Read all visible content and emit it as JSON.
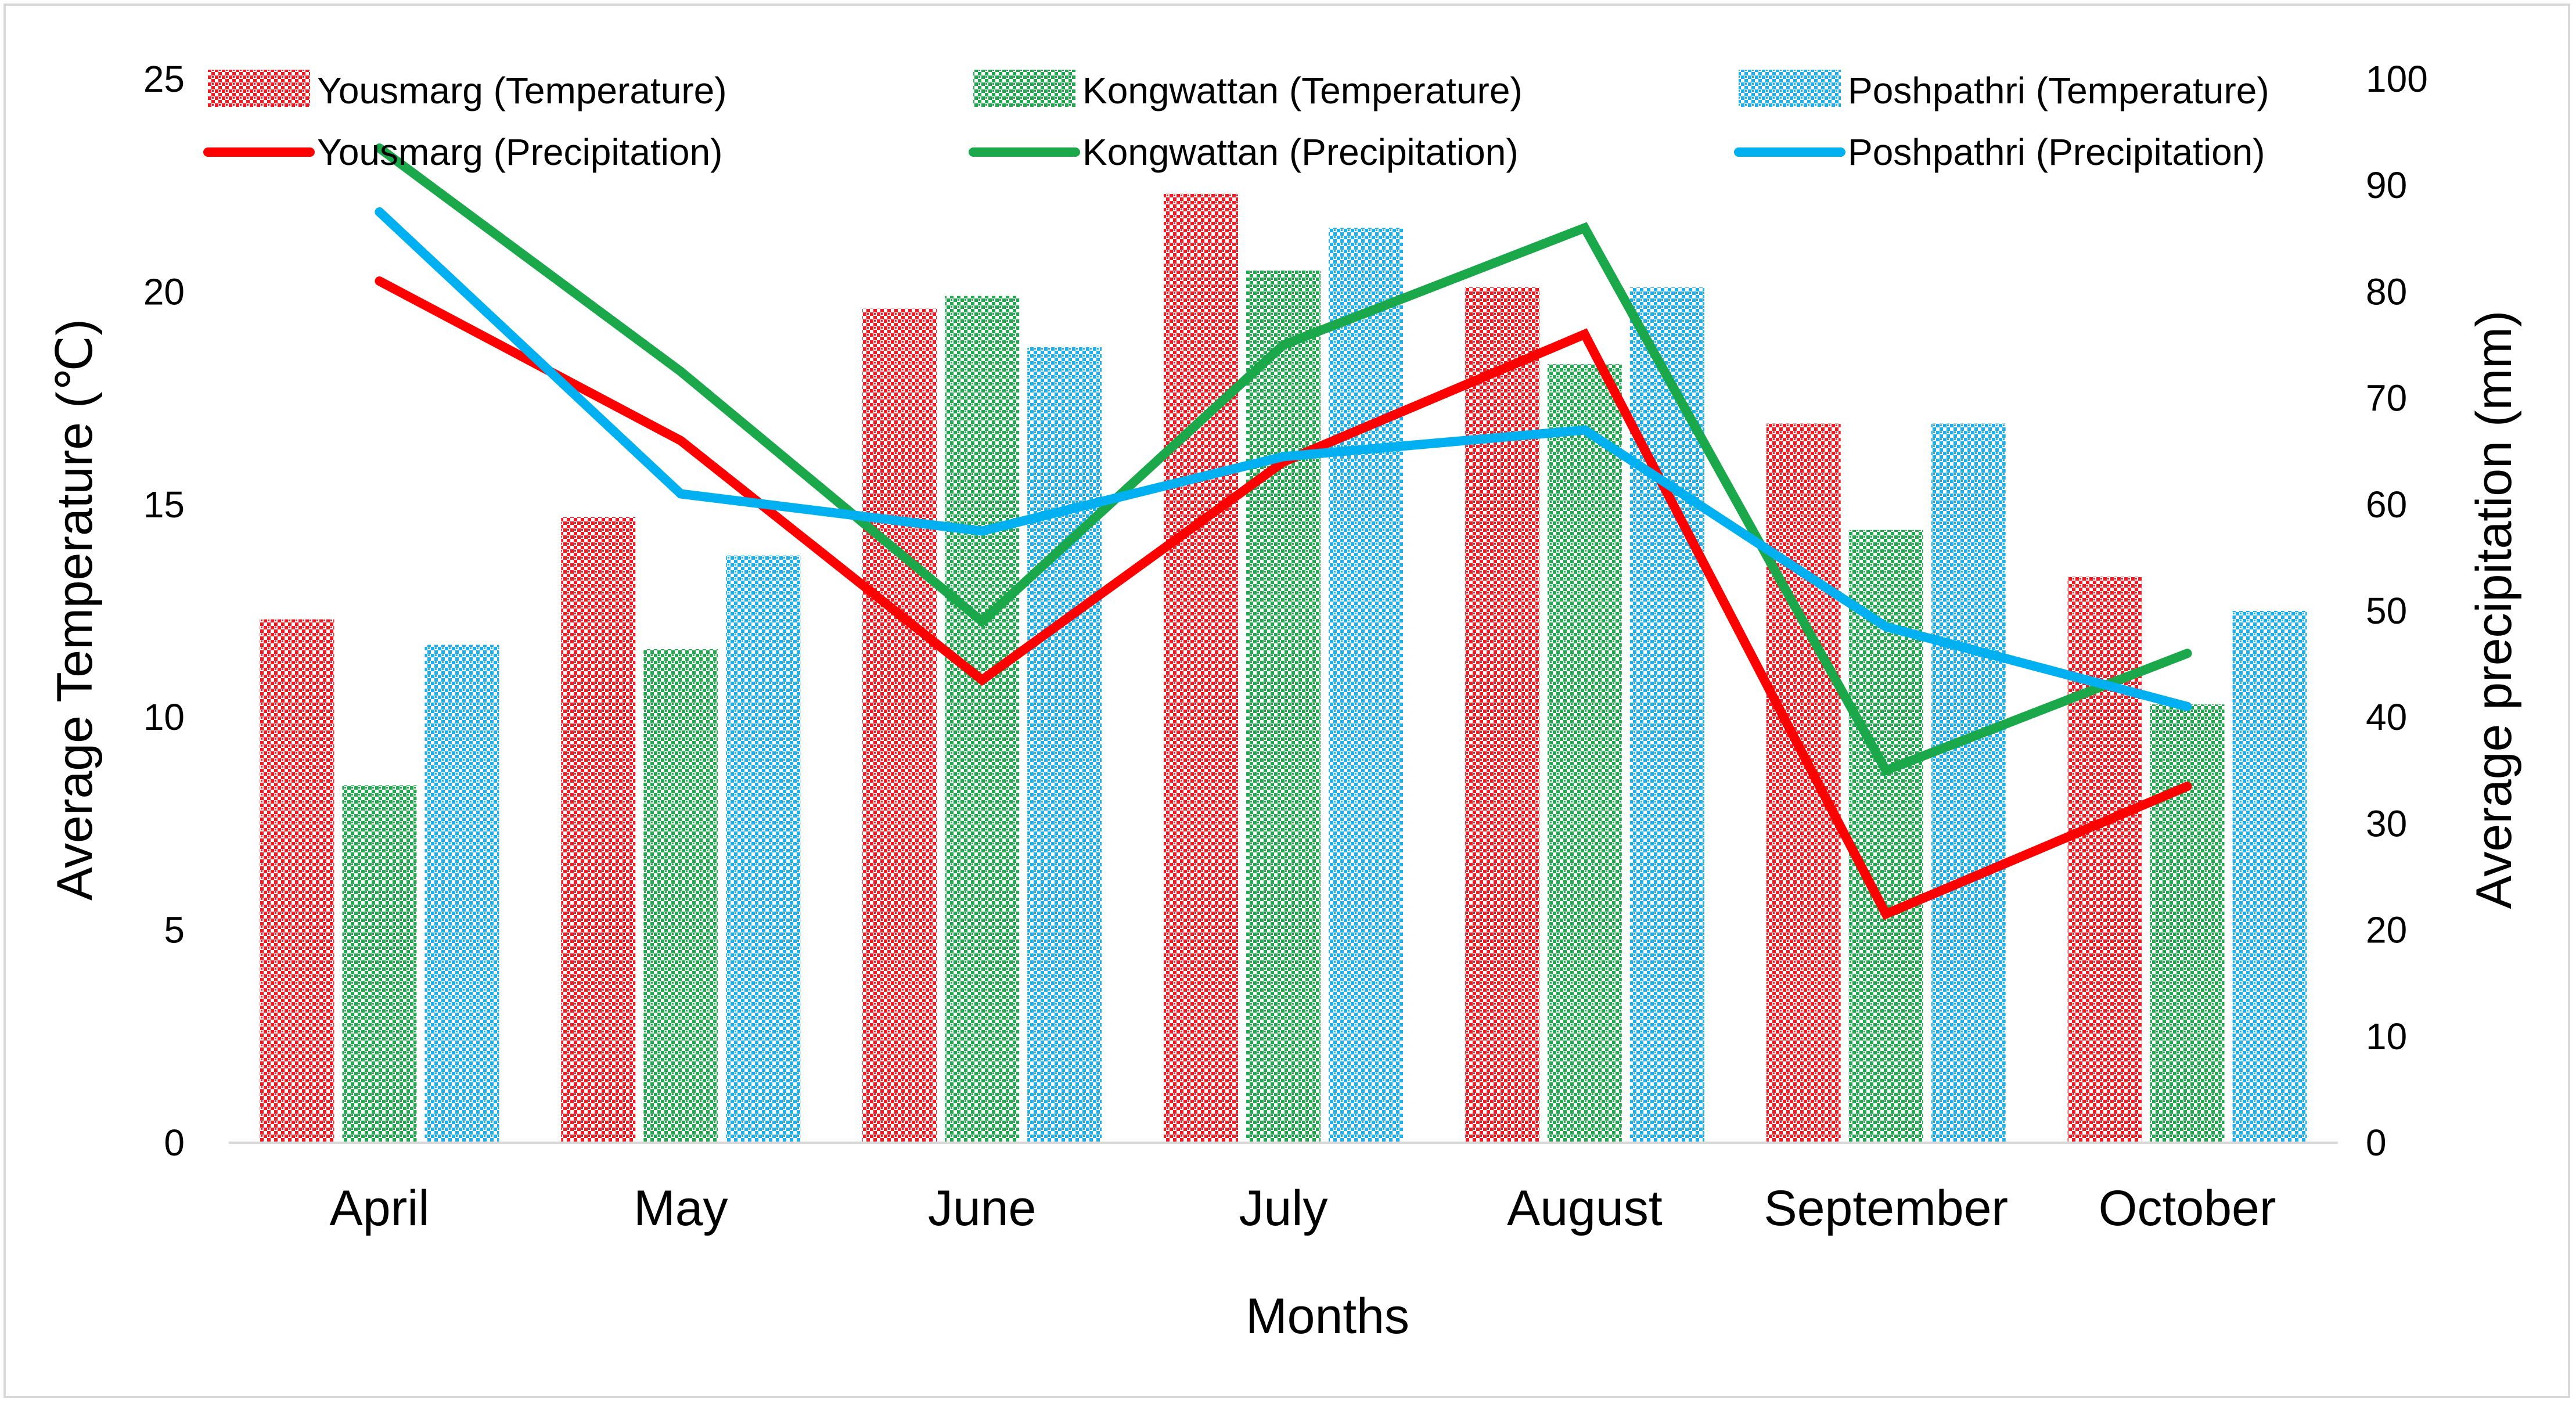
{
  "chart_data": {
    "type": "bar+line",
    "categories": [
      "April",
      "May",
      "June",
      "July",
      "August",
      "September",
      "October"
    ],
    "xlabel": "Months",
    "ylabel_left": "Average Temperature (℃)",
    "ylabel_right": "Average precipitation (mm)",
    "ylim_left": [
      0,
      25
    ],
    "yticks_left": [
      0,
      5,
      10,
      15,
      20,
      25
    ],
    "ylim_right": [
      0,
      100
    ],
    "yticks_right": [
      0,
      10,
      20,
      30,
      40,
      50,
      60,
      70,
      80,
      90,
      100
    ],
    "legend_position": "top",
    "bar_series": [
      {
        "name": "Yousmarg (Temperature)",
        "color": "#ee1c24",
        "values": [
          12.3,
          14.7,
          19.6,
          22.3,
          20.1,
          16.9,
          13.3
        ]
      },
      {
        "name": "Kongwattan (Temperature)",
        "color": "#22a94f",
        "values": [
          8.4,
          11.6,
          19.9,
          20.5,
          18.3,
          14.4,
          10.3
        ]
      },
      {
        "name": "Poshpathri (Temperature)",
        "color": "#1fb0ec",
        "values": [
          11.7,
          13.8,
          18.7,
          21.5,
          20.1,
          16.9,
          12.5
        ]
      }
    ],
    "line_series": [
      {
        "name": "Yousmarg (Precipitation)",
        "color": "#ff0000",
        "values": [
          81,
          66,
          43.5,
          64,
          76,
          21.5,
          33.5
        ]
      },
      {
        "name": "Kongwattan (Precipitation)",
        "color": "#1aa84a",
        "values": [
          93.5,
          72.5,
          49,
          75,
          86,
          35,
          46
        ]
      },
      {
        "name": "Poshpathri (Precipitation)",
        "color": "#00b0f0",
        "values": [
          87.5,
          61,
          57.5,
          64.5,
          67,
          48.5,
          41
        ]
      }
    ]
  }
}
